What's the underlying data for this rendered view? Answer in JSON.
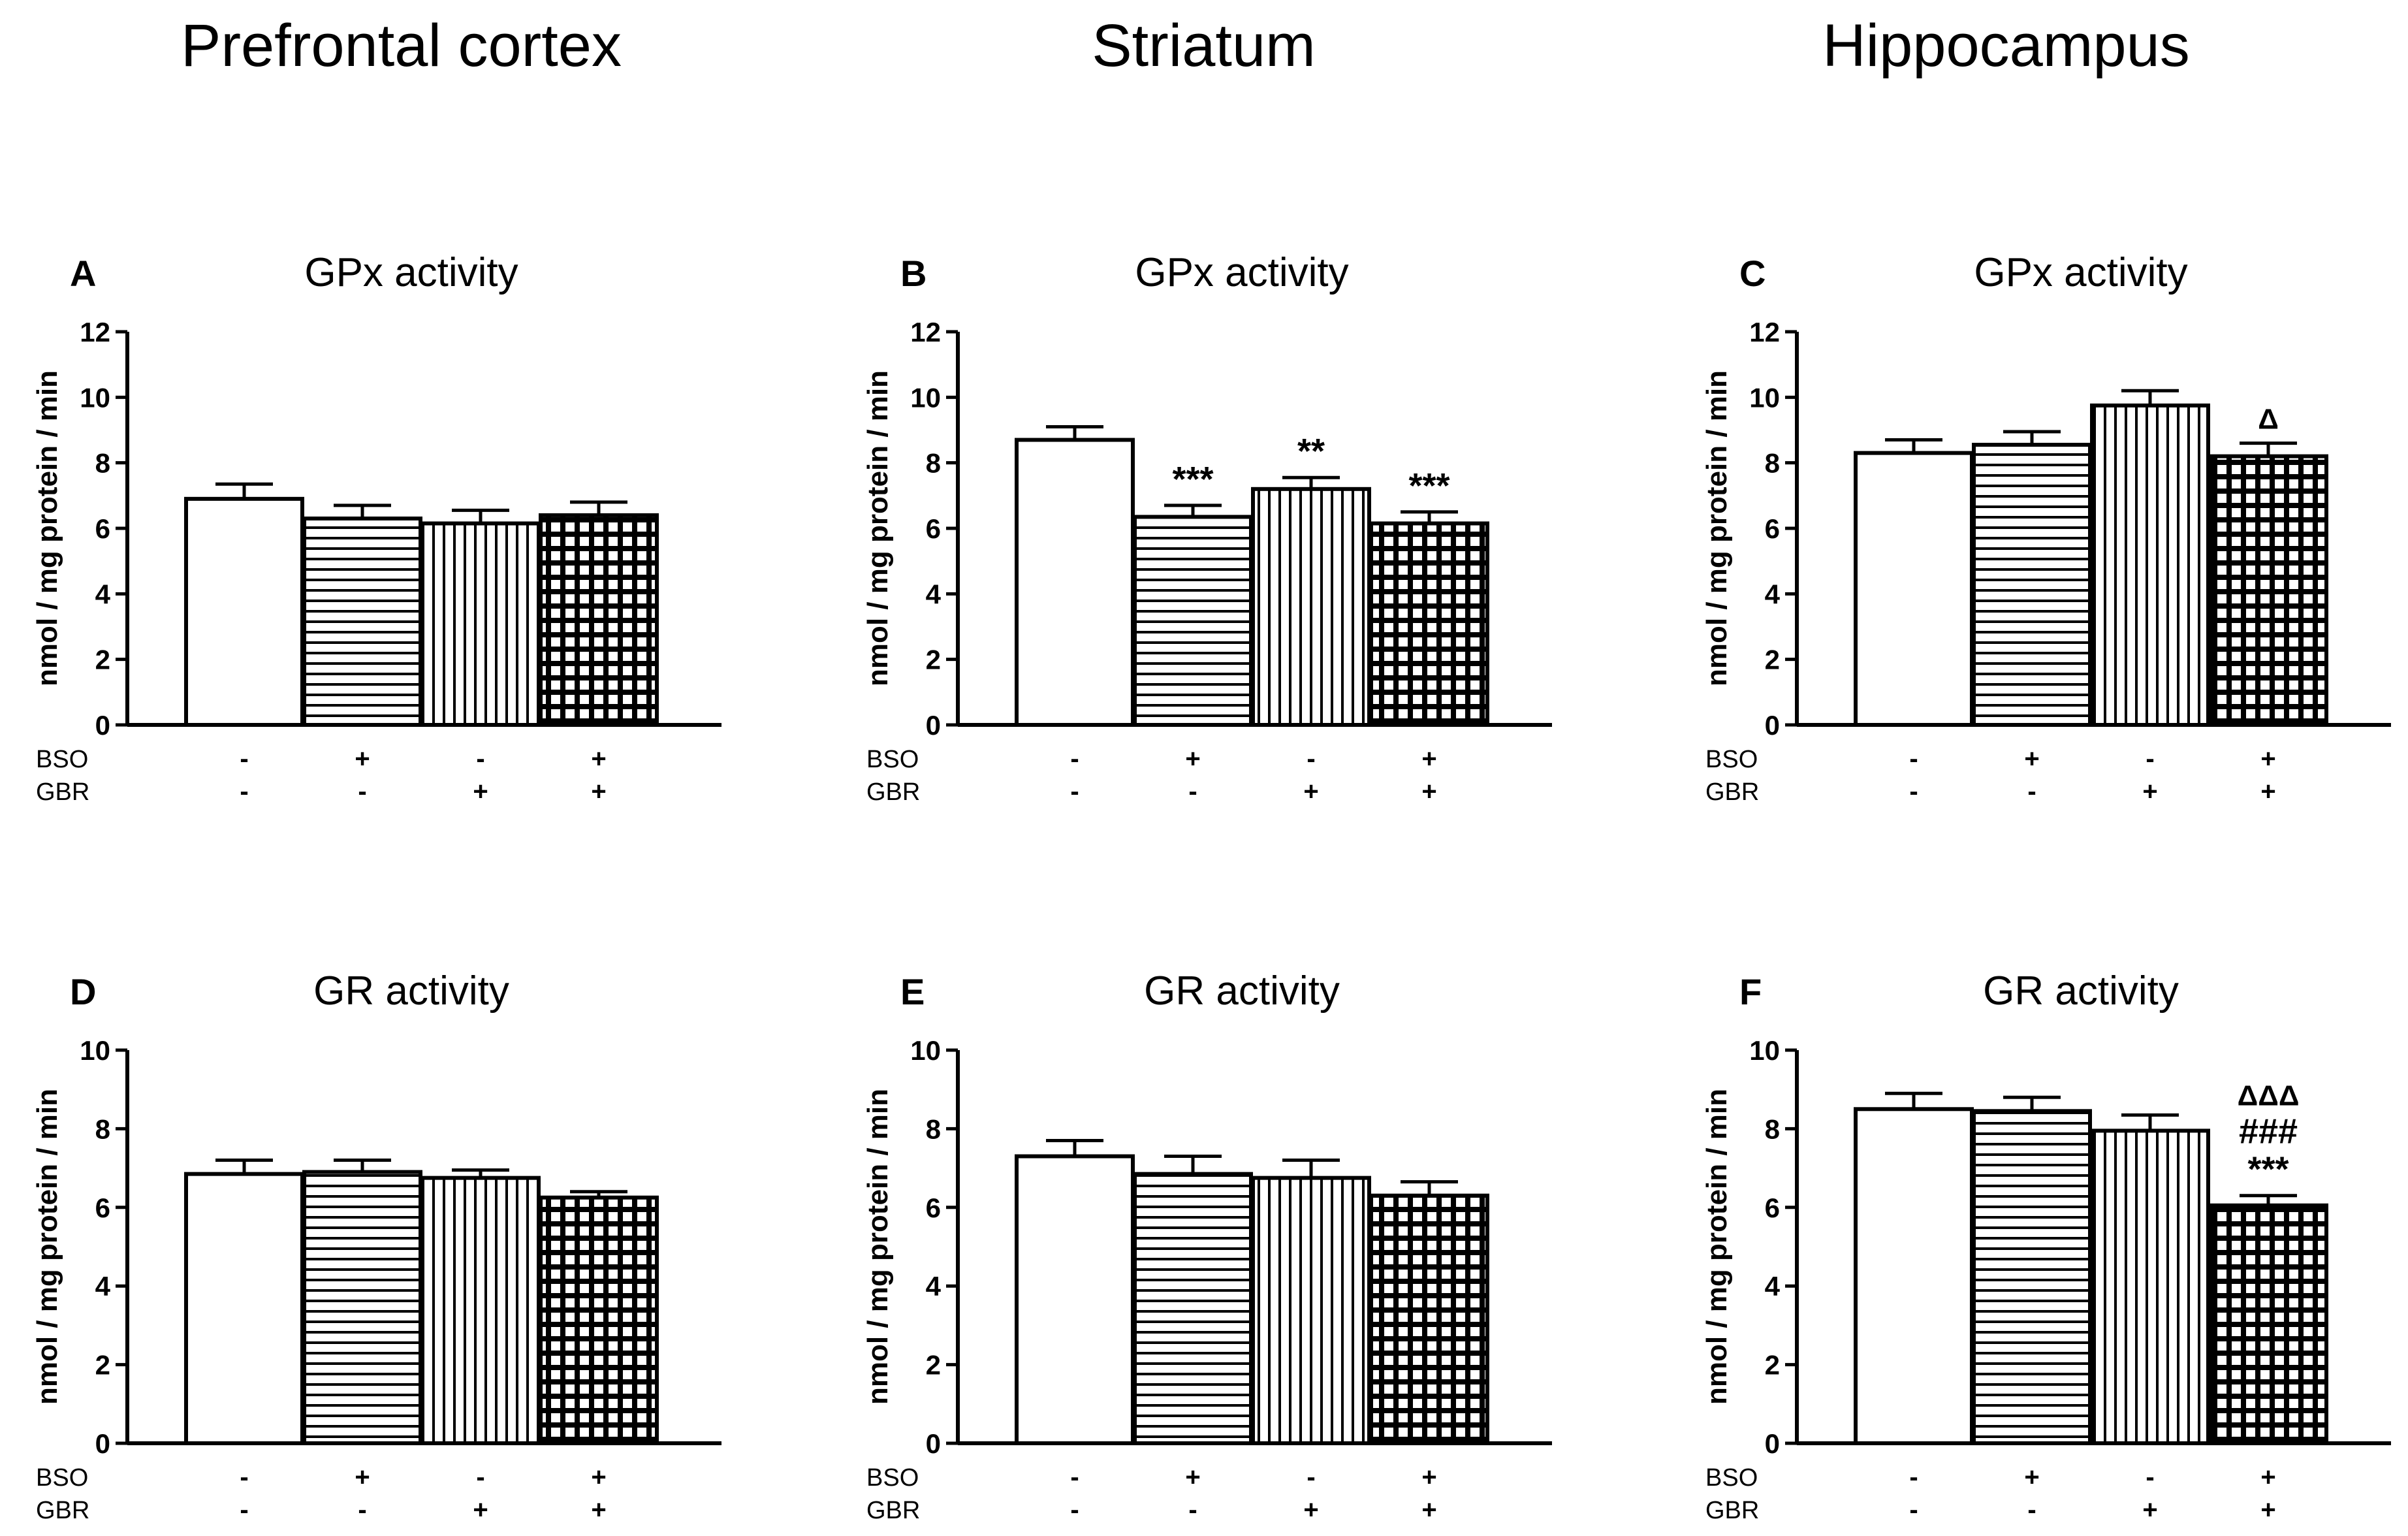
{
  "column_titles": [
    "Prefrontal cortex",
    "Striatum",
    "Hippocampus"
  ],
  "row_labels": [
    "BSO",
    "GBR"
  ],
  "condition_signs": {
    "BSO": [
      "-",
      "+",
      "-",
      "+"
    ],
    "GBR": [
      "-",
      "-",
      "+",
      "+"
    ]
  },
  "chart_data": [
    {
      "panel": "A",
      "type": "bar",
      "title": "GPx activity",
      "ylabel": "nmol / mg protein / min",
      "ylim": [
        0,
        12
      ],
      "yticks": [
        "0",
        "2",
        "4",
        "6",
        "8",
        "10",
        "12"
      ],
      "categories": [
        "BSO- GBR-",
        "BSO+ GBR-",
        "BSO- GBR+",
        "BSO+ GBR+"
      ],
      "values": [
        6.9,
        6.3,
        6.15,
        6.4
      ],
      "errors": [
        0.45,
        0.4,
        0.4,
        0.4
      ],
      "annotations": [
        [],
        [],
        [],
        []
      ]
    },
    {
      "panel": "B",
      "type": "bar",
      "title": "GPx activity",
      "ylabel": "nmol / mg protein / min",
      "ylim": [
        0,
        12
      ],
      "yticks": [
        "0",
        "2",
        "4",
        "6",
        "8",
        "10",
        "12"
      ],
      "categories": [
        "BSO- GBR-",
        "BSO+ GBR-",
        "BSO- GBR+",
        "BSO+ GBR+"
      ],
      "values": [
        8.7,
        6.35,
        7.2,
        6.15
      ],
      "errors": [
        0.4,
        0.35,
        0.35,
        0.35
      ],
      "annotations": [
        [],
        [
          "***"
        ],
        [
          "**"
        ],
        [
          "***"
        ]
      ]
    },
    {
      "panel": "C",
      "type": "bar",
      "title": "GPx activity",
      "ylabel": "nmol / mg protein / min",
      "ylim": [
        0,
        12
      ],
      "yticks": [
        "0",
        "2",
        "4",
        "6",
        "8",
        "10",
        "12"
      ],
      "categories": [
        "BSO- GBR-",
        "BSO+ GBR-",
        "BSO- GBR+",
        "BSO+ GBR+"
      ],
      "values": [
        8.3,
        8.55,
        9.75,
        8.2
      ],
      "errors": [
        0.4,
        0.4,
        0.45,
        0.4
      ],
      "annotations": [
        [],
        [],
        [],
        [
          "Δ"
        ]
      ]
    },
    {
      "panel": "D",
      "type": "bar",
      "title": "GR activity",
      "ylabel": "nmol / mg protein / min",
      "ylim": [
        0,
        10
      ],
      "yticks": [
        "0",
        "2",
        "4",
        "6",
        "8",
        "10"
      ],
      "categories": [
        "BSO- GBR-",
        "BSO+ GBR-",
        "BSO- GBR+",
        "BSO+ GBR+"
      ],
      "values": [
        6.85,
        6.9,
        6.75,
        6.25
      ],
      "errors": [
        0.35,
        0.3,
        0.2,
        0.15
      ],
      "annotations": [
        [],
        [],
        [],
        []
      ]
    },
    {
      "panel": "E",
      "type": "bar",
      "title": "GR activity",
      "ylabel": "nmol / mg protein / min",
      "ylim": [
        0,
        10
      ],
      "yticks": [
        "0",
        "2",
        "4",
        "6",
        "8",
        "10"
      ],
      "categories": [
        "BSO- GBR-",
        "BSO+ GBR-",
        "BSO- GBR+",
        "BSO+ GBR+"
      ],
      "values": [
        7.3,
        6.85,
        6.75,
        6.3
      ],
      "errors": [
        0.4,
        0.45,
        0.45,
        0.35
      ],
      "annotations": [
        [],
        [],
        [],
        []
      ]
    },
    {
      "panel": "F",
      "type": "bar",
      "title": "GR activity",
      "ylabel": "nmol / mg protein / min",
      "ylim": [
        0,
        10
      ],
      "yticks": [
        "0",
        "2",
        "4",
        "6",
        "8",
        "10"
      ],
      "categories": [
        "BSO- GBR-",
        "BSO+ GBR-",
        "BSO- GBR+",
        "BSO+ GBR+"
      ],
      "values": [
        8.5,
        8.45,
        7.95,
        6.05
      ],
      "errors": [
        0.4,
        0.35,
        0.4,
        0.25
      ],
      "annotations": [
        [],
        [],
        [],
        [
          "***",
          "###",
          "ΔΔΔ"
        ]
      ]
    }
  ]
}
